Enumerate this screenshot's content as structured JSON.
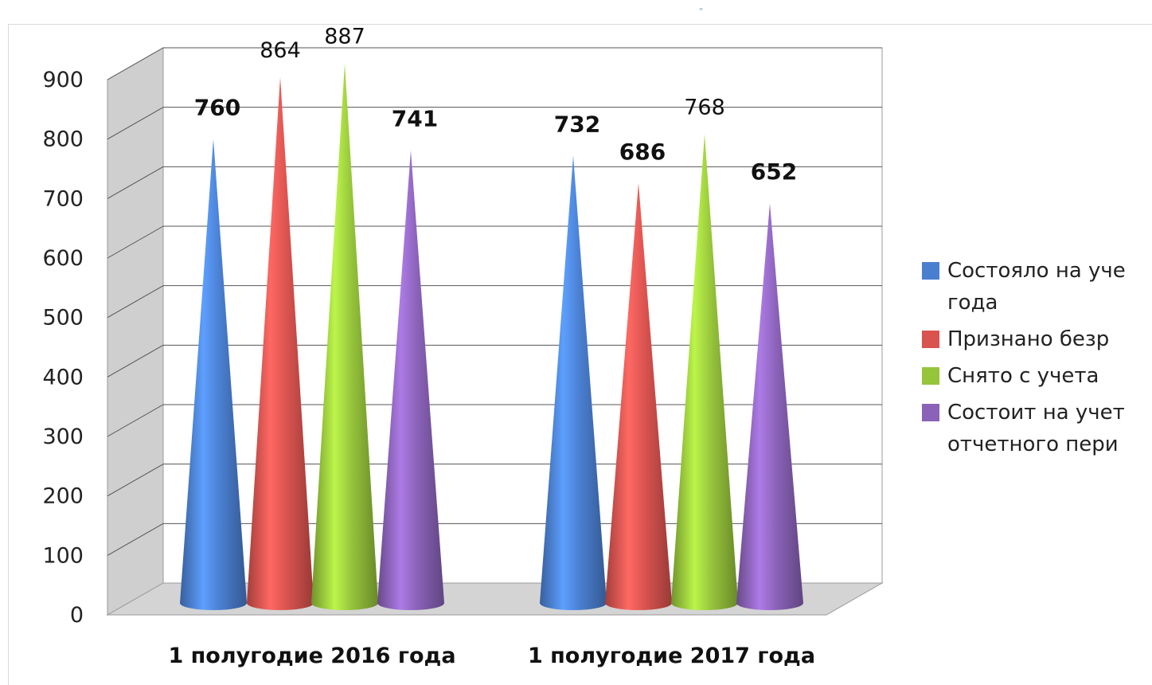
{
  "chart_data": {
    "type": "bar",
    "style": "3d-cone",
    "categories": [
      "1 полугодие 2016 года",
      "1 полугодие 2017 года"
    ],
    "series": [
      {
        "name": "Состояло на уче\nгода",
        "values": [
          760,
          732
        ],
        "color": "#4a7fd0"
      },
      {
        "name": "Признано безр",
        "values": [
          864,
          686
        ],
        "color": "#d9534f"
      },
      {
        "name": "Снято с учета",
        "values": [
          887,
          768
        ],
        "color": "#96c43b"
      },
      {
        "name": "Состоит на учет\nотчетного пери",
        "values": [
          741,
          652
        ],
        "color": "#8a62b8"
      }
    ],
    "yticks": [
      0,
      100,
      200,
      300,
      400,
      500,
      600,
      700,
      800,
      900
    ],
    "ylim": [
      0,
      900
    ],
    "grid": true,
    "legend_position": "right"
  },
  "top_mark": "\""
}
